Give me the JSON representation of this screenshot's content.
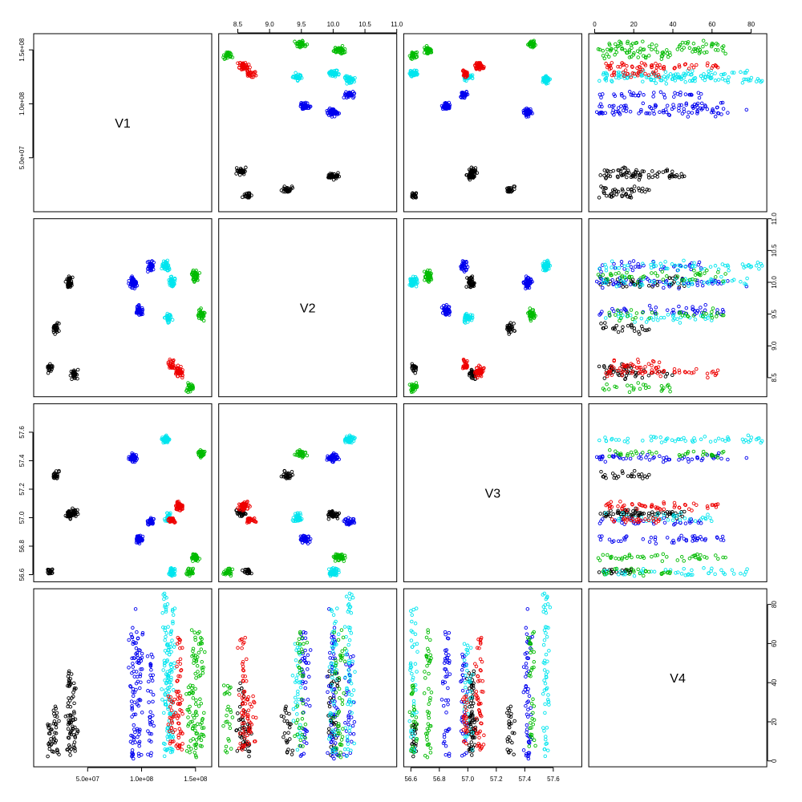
{
  "chart_data": {
    "type": "scatter",
    "layout": "pairs-matrix",
    "title": "",
    "variables": [
      "V1",
      "V2",
      "V3",
      "V4"
    ],
    "axes": {
      "V1": {
        "range": [
          0,
          165000000
        ],
        "ticks": [
          50000000,
          100000000,
          150000000
        ],
        "tick_labels": [
          "5.0e+07",
          "1.0e+08",
          "1.5e+08"
        ]
      },
      "V2": {
        "range": [
          8.2,
          11.0
        ],
        "ticks": [
          8.5,
          9.0,
          9.5,
          10.0,
          10.5,
          11.0
        ],
        "tick_labels": [
          "8.5",
          "9.0",
          "9.5",
          "10.0",
          "10.5",
          "11.0"
        ]
      },
      "V3": {
        "range": [
          56.55,
          57.8
        ],
        "ticks": [
          56.6,
          56.8,
          57.0,
          57.2,
          57.4,
          57.6
        ],
        "tick_labels": [
          "56.6",
          "56.8",
          "57.0",
          "57.2",
          "57.4",
          "57.6"
        ]
      },
      "V4": {
        "range": [
          -3,
          88
        ],
        "ticks": [
          0,
          20,
          40,
          60,
          80
        ],
        "tick_labels": [
          "0",
          "20",
          "40",
          "60",
          "80"
        ]
      }
    },
    "tick_placement": "alternating outer margins (bottom/left for odd, top/right for even)",
    "marker": "open circle",
    "grid": false,
    "legend": "none",
    "group_colors": {
      "black": "#000000",
      "blue": "#0000ee",
      "cyan": "#00e5ee",
      "red": "#ee0000",
      "green": "#00bb00"
    },
    "clusters": [
      {
        "group": "black",
        "v1": 33000000,
        "v2": 10.0,
        "v3": 57.02,
        "v4": 20,
        "v4_min": 2,
        "v4_max": 46,
        "n": 45
      },
      {
        "group": "black",
        "v1": 15000000,
        "v2": 8.65,
        "v3": 56.62,
        "v4": 8,
        "v4_min": 2,
        "v4_max": 20,
        "n": 20
      },
      {
        "group": "black",
        "v1": 20000000,
        "v2": 9.3,
        "v3": 57.3,
        "v4": 12,
        "v4_min": 3,
        "v4_max": 30,
        "n": 25
      },
      {
        "group": "black",
        "v1": 38000000,
        "v2": 8.55,
        "v3": 57.03,
        "v4": 25,
        "v4_min": 5,
        "v4_max": 42,
        "n": 30
      },
      {
        "group": "blue",
        "v1": 92000000,
        "v2": 10.0,
        "v3": 57.42,
        "v4": 35,
        "v4_min": 1,
        "v4_max": 78,
        "n": 55
      },
      {
        "group": "blue",
        "v1": 98000000,
        "v2": 9.55,
        "v3": 56.85,
        "v4": 25,
        "v4_min": 2,
        "v4_max": 66,
        "n": 45
      },
      {
        "group": "blue",
        "v1": 108000000,
        "v2": 10.25,
        "v3": 56.97,
        "v4": 20,
        "v4_min": 1,
        "v4_max": 55,
        "n": 35
      },
      {
        "group": "cyan",
        "v1": 122000000,
        "v2": 10.25,
        "v3": 57.55,
        "v4": 40,
        "v4_min": 1,
        "v4_max": 86,
        "n": 55
      },
      {
        "group": "cyan",
        "v1": 128000000,
        "v2": 10.0,
        "v3": 56.62,
        "v4": 35,
        "v4_min": 2,
        "v4_max": 80,
        "n": 45
      },
      {
        "group": "cyan",
        "v1": 125000000,
        "v2": 9.45,
        "v3": 57.0,
        "v4": 25,
        "v4_min": 3,
        "v4_max": 60,
        "n": 35
      },
      {
        "group": "red",
        "v1": 135000000,
        "v2": 8.6,
        "v3": 57.08,
        "v4": 25,
        "v4_min": 5,
        "v4_max": 63,
        "n": 55
      },
      {
        "group": "red",
        "v1": 128000000,
        "v2": 8.7,
        "v3": 56.98,
        "v4": 18,
        "v4_min": 8,
        "v4_max": 35,
        "n": 25
      },
      {
        "group": "green",
        "v1": 150000000,
        "v2": 10.1,
        "v3": 56.72,
        "v4": 30,
        "v4_min": 0,
        "v4_max": 68,
        "n": 45
      },
      {
        "group": "green",
        "v1": 155000000,
        "v2": 9.5,
        "v3": 57.45,
        "v4": 35,
        "v4_min": 3,
        "v4_max": 66,
        "n": 35
      },
      {
        "group": "green",
        "v1": 145000000,
        "v2": 8.35,
        "v3": 56.62,
        "v4": 15,
        "v4_min": 2,
        "v4_max": 40,
        "n": 25
      }
    ]
  }
}
